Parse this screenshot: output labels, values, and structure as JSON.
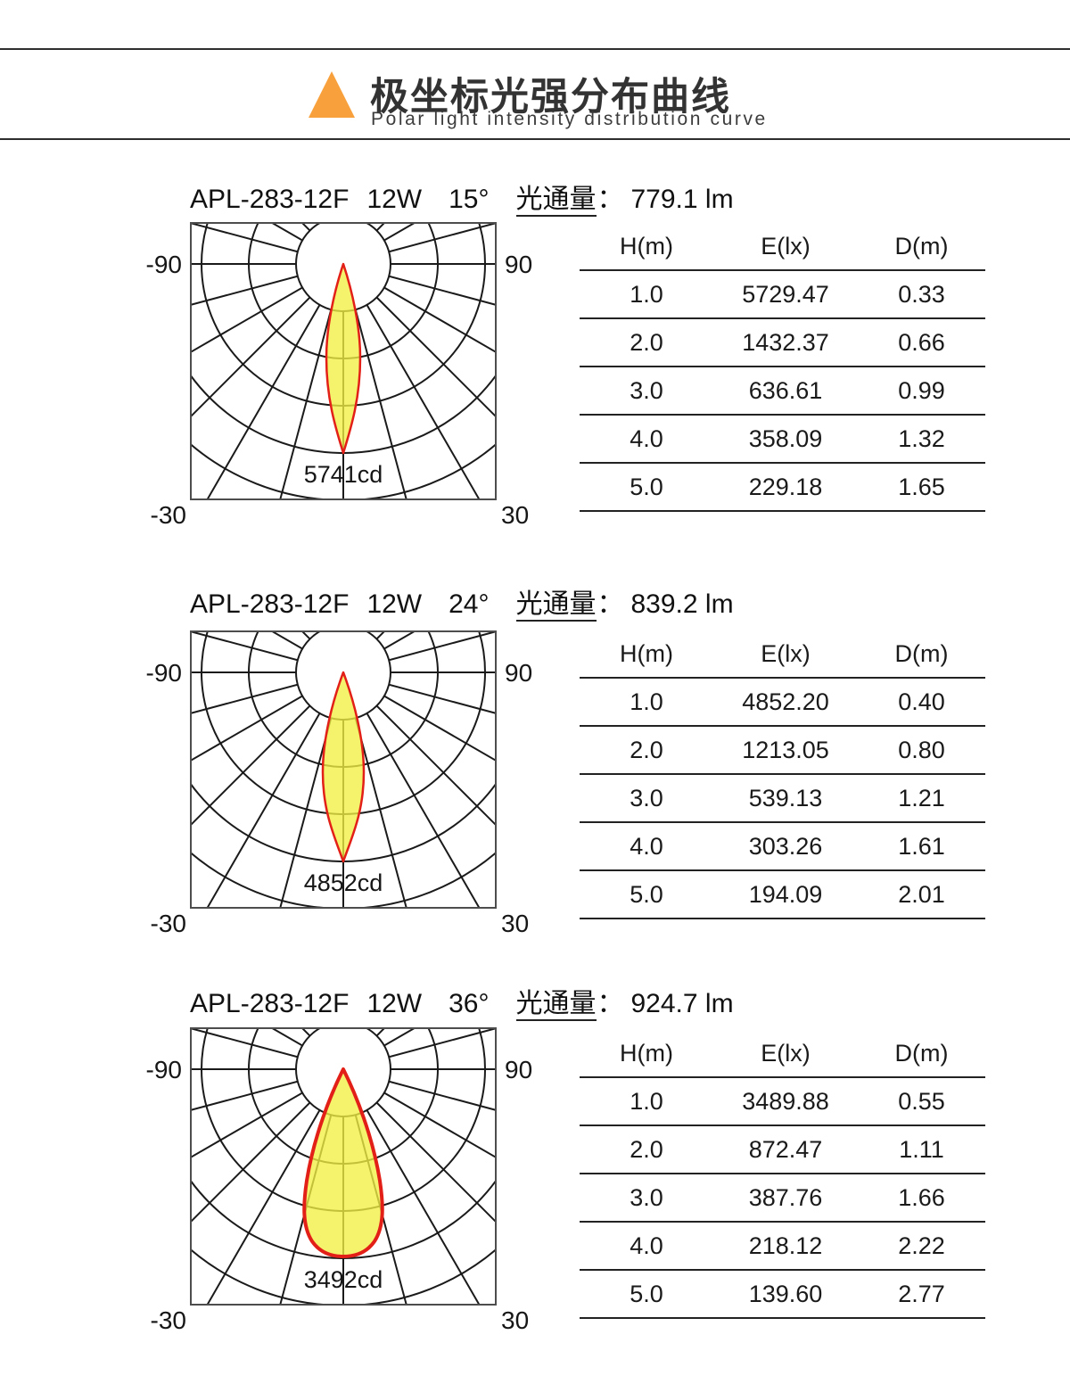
{
  "colors": {
    "accent_orange": "#F7A03C",
    "beam_fill_yellow": "rgba(242,238,66,0.78)",
    "beam_stroke_red": "#E32017",
    "grid_line": "#1A1A1A",
    "frame_line": "#4D4D4D",
    "rule_line": "#2E2E2E"
  },
  "header": {
    "title_cn": "极坐标光强分布曲线",
    "title_en": "Polar light intensity distribution curve"
  },
  "table_columns": [
    "H(m)",
    "E(lx)",
    "D(m)"
  ],
  "axis_labels": {
    "left": "-90",
    "right": "90",
    "bottom_left": "-30",
    "bottom_right": "30"
  },
  "sections": [
    {
      "model": "APL-283-12F",
      "power": "12W",
      "angle": "15°",
      "flux_label": "光通量",
      "flux_sep": "：",
      "flux_value": "779.1 lm",
      "peak_cd": "5741cd",
      "rows": [
        [
          "1.0",
          "5729.47",
          "0.33"
        ],
        [
          "2.0",
          "1432.37",
          "0.66"
        ],
        [
          "3.0",
          "636.61",
          "0.99"
        ],
        [
          "4.0",
          "358.09",
          "1.32"
        ],
        [
          "5.0",
          "229.18",
          "1.65"
        ]
      ]
    },
    {
      "model": "APL-283-12F",
      "power": "12W",
      "angle": "24°",
      "flux_label": "光通量",
      "flux_sep": "：",
      "flux_value": "839.2 lm",
      "peak_cd": "4852cd",
      "rows": [
        [
          "1.0",
          "4852.20",
          "0.40"
        ],
        [
          "2.0",
          "1213.05",
          "0.80"
        ],
        [
          "3.0",
          "539.13",
          "1.21"
        ],
        [
          "4.0",
          "303.26",
          "1.61"
        ],
        [
          "5.0",
          "194.09",
          "2.01"
        ]
      ]
    },
    {
      "model": "APL-283-12F",
      "power": "12W",
      "angle": "36°",
      "flux_label": "光通量",
      "flux_sep": "：",
      "flux_value": "924.7 lm",
      "peak_cd": "3492cd",
      "rows": [
        [
          "1.0",
          "3489.88",
          "0.55"
        ],
        [
          "2.0",
          "872.47",
          "1.11"
        ],
        [
          "3.0",
          "387.76",
          "1.66"
        ],
        [
          "4.0",
          "218.12",
          "2.22"
        ],
        [
          "5.0",
          "139.60",
          "2.77"
        ]
      ]
    }
  ],
  "chart_data": [
    {
      "type": "polar",
      "title": "APL-283-12F 12W 15° 光通量: 779.1 lm",
      "model": "APL-283-12F",
      "power_w": 12,
      "beam_angle_deg": 15,
      "luminous_flux_lm": 779.1,
      "peak_intensity_cd": 5741,
      "angle_axis_labels_deg": [
        -90,
        -30,
        30,
        90
      ],
      "angle_grid_step_deg": 15,
      "radial_rings": 5,
      "legend_position": "none",
      "table": {
        "columns": [
          "H(m)",
          "E(lx)",
          "D(m)"
        ],
        "rows": [
          [
            1.0,
            5729.47,
            0.33
          ],
          [
            2.0,
            1432.37,
            0.66
          ],
          [
            3.0,
            636.61,
            0.99
          ],
          [
            4.0,
            358.09,
            1.32
          ],
          [
            5.0,
            229.18,
            1.65
          ]
        ]
      }
    },
    {
      "type": "polar",
      "title": "APL-283-12F 12W 24° 光通量: 839.2 lm",
      "model": "APL-283-12F",
      "power_w": 12,
      "beam_angle_deg": 24,
      "luminous_flux_lm": 839.2,
      "peak_intensity_cd": 4852,
      "angle_axis_labels_deg": [
        -90,
        -30,
        30,
        90
      ],
      "angle_grid_step_deg": 15,
      "radial_rings": 5,
      "legend_position": "none",
      "table": {
        "columns": [
          "H(m)",
          "E(lx)",
          "D(m)"
        ],
        "rows": [
          [
            1.0,
            4852.2,
            0.4
          ],
          [
            2.0,
            1213.05,
            0.8
          ],
          [
            3.0,
            539.13,
            1.21
          ],
          [
            4.0,
            303.26,
            1.61
          ],
          [
            5.0,
            194.09,
            2.01
          ]
        ]
      }
    },
    {
      "type": "polar",
      "title": "APL-283-12F 12W 36° 光通量: 924.7 lm",
      "model": "APL-283-12F",
      "power_w": 12,
      "beam_angle_deg": 36,
      "luminous_flux_lm": 924.7,
      "peak_intensity_cd": 3492,
      "angle_axis_labels_deg": [
        -90,
        -30,
        30,
        90
      ],
      "angle_grid_step_deg": 15,
      "radial_rings": 5,
      "legend_position": "none",
      "table": {
        "columns": [
          "H(m)",
          "E(lx)",
          "D(m)"
        ],
        "rows": [
          [
            1.0,
            3489.88,
            0.55
          ],
          [
            2.0,
            872.47,
            1.11
          ],
          [
            3.0,
            387.76,
            1.66
          ],
          [
            4.0,
            218.12,
            2.22
          ],
          [
            5.0,
            139.6,
            2.77
          ]
        ]
      }
    }
  ]
}
